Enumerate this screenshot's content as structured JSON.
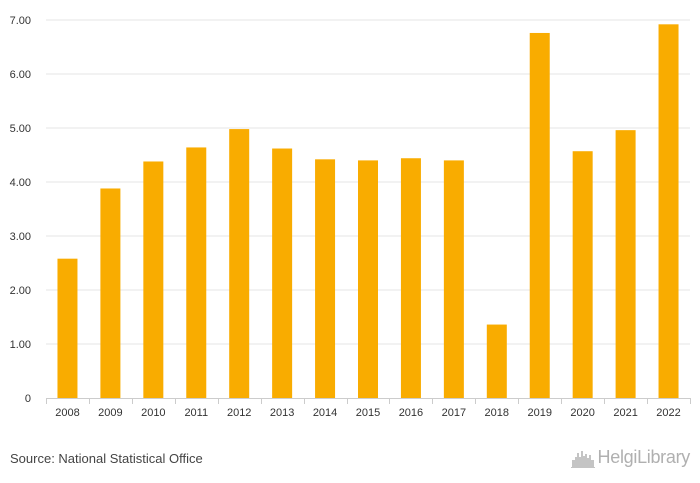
{
  "chart_data": {
    "type": "bar",
    "categories": [
      "2008",
      "2009",
      "2010",
      "2011",
      "2012",
      "2013",
      "2014",
      "2015",
      "2016",
      "2017",
      "2018",
      "2019",
      "2020",
      "2021",
      "2022"
    ],
    "values": [
      2.58,
      3.88,
      4.38,
      4.64,
      4.98,
      4.62,
      4.42,
      4.4,
      4.44,
      4.4,
      1.36,
      6.76,
      4.57,
      4.96,
      6.92
    ],
    "ylim": [
      0,
      7
    ],
    "yticks": [
      0,
      1,
      2,
      3,
      4,
      5,
      6,
      7
    ],
    "ytick_labels": [
      "0",
      "1.00",
      "2.00",
      "3.00",
      "4.00",
      "5.00",
      "6.00",
      "7.00"
    ],
    "grid": true,
    "bar_color": "#F9AC00",
    "grid_color": "#e6e6e6"
  },
  "footer": {
    "source": "Source: National Statistical Office",
    "logo_text": "HelgiLibrary",
    "logo_icon": "city-skyline-icon"
  }
}
